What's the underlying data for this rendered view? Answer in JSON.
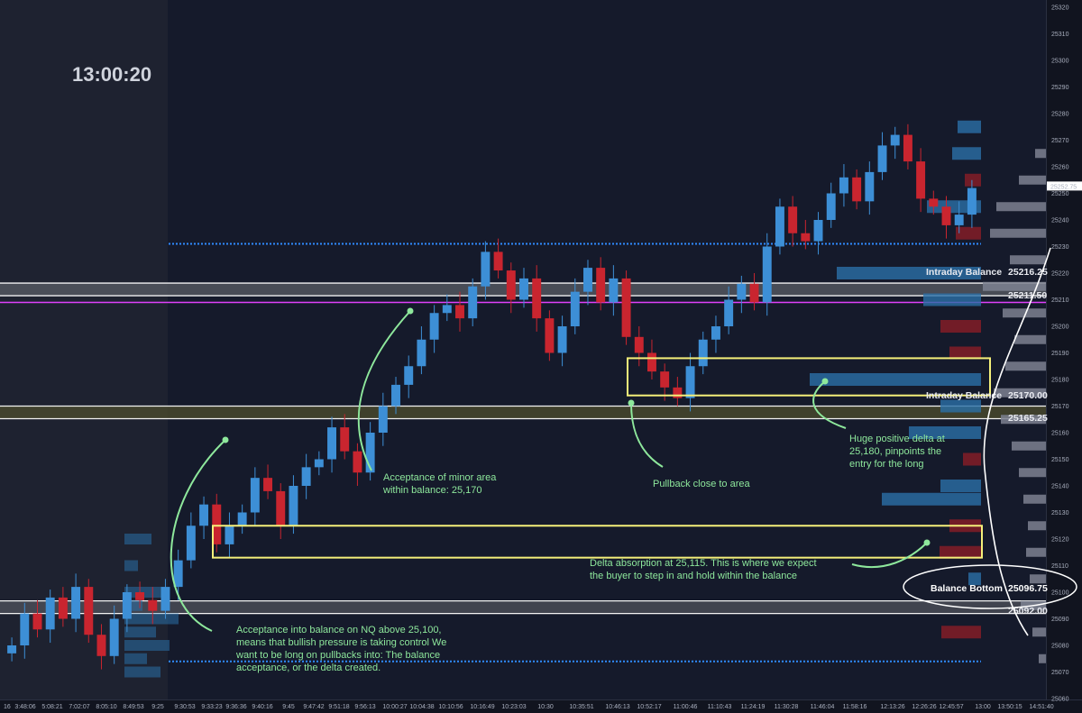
{
  "clock": "13:00:20",
  "chart_data": {
    "type": "candlestick",
    "ylim": [
      25056,
      25326
    ],
    "y_ticks": [
      25060,
      25070,
      25080,
      25090,
      25100,
      25110,
      25120,
      25130,
      25140,
      25150,
      25160,
      25170,
      25180,
      25190,
      25200,
      25210,
      25220,
      25230,
      25240,
      25250,
      25260,
      25270,
      25280,
      25290,
      25300,
      25310,
      25320
    ],
    "x_ticks": [
      "16",
      "3:48:06",
      "5:08:21",
      "7:02:07",
      "8:05:10",
      "8:49:53",
      "9:25",
      "9:30:53",
      "9:33:23",
      "9:36:36",
      "9:40:16",
      "9:45",
      "9:47:42",
      "9:51:18",
      "9:56:13",
      "10:00:27",
      "10:04:38",
      "10:10:56",
      "10:16:49",
      "10:23:03",
      "10:30",
      "10:35:51",
      "10:46:13",
      "10:52:17",
      "11:00:46",
      "11:10:43",
      "11:24:19",
      "11:30:28",
      "11:46:04",
      "11:58:16",
      "12:13:26",
      "12:26:26",
      "12:45:57",
      "13:00",
      "13:50:15",
      "14:51:40"
    ],
    "close_series": [
      25080,
      25092,
      25086,
      25098,
      25090,
      25102,
      25084,
      25076,
      25090,
      25100,
      25097,
      25093,
      25102,
      25112,
      25125,
      25133,
      25118,
      25125,
      25130,
      25143,
      25138,
      25125,
      25140,
      25147,
      25150,
      25162,
      25153,
      25145,
      25160,
      25170,
      25178,
      25185,
      25195,
      25205,
      25208,
      25203,
      25215,
      25228,
      25221,
      25210,
      25218,
      25203,
      25190,
      25200,
      25213,
      25222,
      25209,
      25218,
      25196,
      25190,
      25183,
      25177,
      25173,
      25185,
      25195,
      25200,
      25210,
      25216,
      25209,
      25230,
      25245,
      25235,
      25232,
      25240,
      25250,
      25256,
      25247,
      25258,
      25268,
      25272,
      25262,
      25248,
      25245,
      25238,
      25242,
      25252
    ],
    "current_price": "25252.75",
    "levels": [
      {
        "label": "Intraday Balance",
        "price": "25216.25"
      },
      {
        "label": "",
        "price": "25211.50"
      },
      {
        "label": "Intraday Balance",
        "price": "25170.00"
      },
      {
        "label": "",
        "price": "25165.25"
      },
      {
        "label": "Balance Bottom",
        "price": "25096.75"
      },
      {
        "label": "",
        "price": "25092.00"
      }
    ],
    "level_lines": [
      25216.25,
      25211.5,
      25170,
      25165.25,
      25096.75,
      25092
    ],
    "dotted_lines": [
      25231,
      25074
    ],
    "volume_profile": [
      {
        "price": 25275,
        "vol": 26,
        "side": "buy"
      },
      {
        "price": 25265,
        "vol": 32,
        "side": "buy"
      },
      {
        "price": 25255,
        "vol": 18,
        "side": "sell"
      },
      {
        "price": 25245,
        "vol": 60,
        "side": "buy"
      },
      {
        "price": 25235,
        "vol": 28,
        "side": "sell"
      },
      {
        "price": 25220,
        "vol": 160,
        "side": "buy"
      },
      {
        "price": 25210,
        "vol": 64,
        "side": "buy"
      },
      {
        "price": 25200,
        "vol": 45,
        "side": "sell"
      },
      {
        "price": 25190,
        "vol": 35,
        "side": "sell"
      },
      {
        "price": 25180,
        "vol": 190,
        "side": "buy"
      },
      {
        "price": 25170,
        "vol": 45,
        "side": "buy"
      },
      {
        "price": 25160,
        "vol": 80,
        "side": "buy"
      },
      {
        "price": 25150,
        "vol": 20,
        "side": "sell"
      },
      {
        "price": 25140,
        "vol": 45,
        "side": "buy"
      },
      {
        "price": 25135,
        "vol": 110,
        "side": "buy"
      },
      {
        "price": 25125,
        "vol": 35,
        "side": "sell"
      },
      {
        "price": 25115,
        "vol": 46,
        "side": "sell"
      },
      {
        "price": 25105,
        "vol": 14,
        "side": "buy"
      },
      {
        "price": 25085,
        "vol": 44,
        "side": "sell"
      }
    ],
    "zones": [
      {
        "price_top": 25188,
        "price_bottom": 25174
      },
      {
        "price_top": 25125,
        "price_bottom": 25113
      }
    ]
  },
  "annotations": [
    {
      "id": "acceptance-balance",
      "lines": [
        "Acceptance into balance on NQ above 25,100,",
        "means that bullish pressure is taking control We",
        "want to be long on pullbacks into: The balance",
        "acceptance, or the delta created."
      ]
    },
    {
      "id": "minor-area",
      "lines": [
        "Acceptance of minor area",
        "within balance: 25,170"
      ]
    },
    {
      "id": "pullback",
      "lines": [
        "Pullback close to area"
      ]
    },
    {
      "id": "positive-delta",
      "lines": [
        "Huge positive delta at",
        "25,180, pinpoints the",
        "entry for the long"
      ]
    },
    {
      "id": "delta-absorption",
      "lines": [
        "Delta absorption at 25,115. This is where we expect",
        "the buyer to step in and hold within the balance"
      ]
    }
  ],
  "colors": {
    "background": "#151a2b",
    "premarket": "#1e2230",
    "up_candle": "#3d8fd6",
    "down_candle": "#c9252f",
    "annotation": "#8ee89c",
    "zone_border": "#f5f07a",
    "dotted": "#2f8bff",
    "magenta": "#e040fb"
  }
}
